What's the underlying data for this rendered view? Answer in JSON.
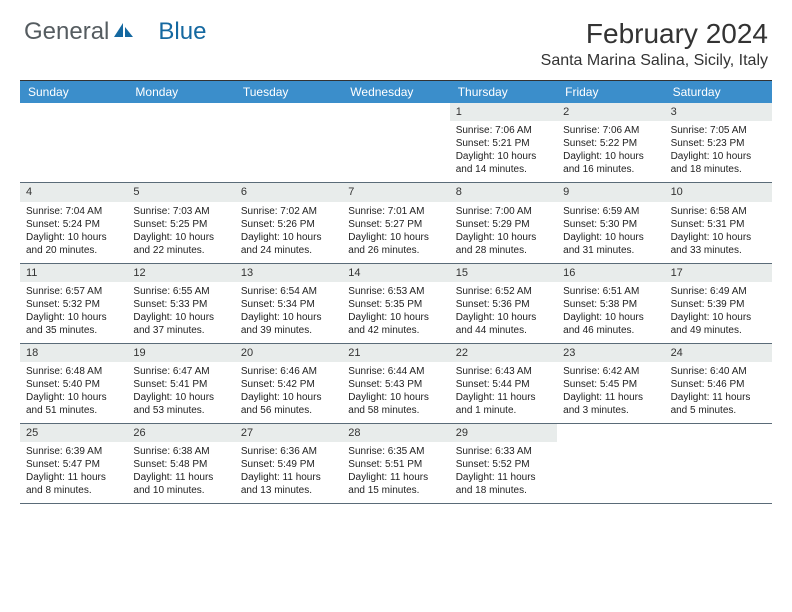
{
  "logo": {
    "text1": "General",
    "text2": "Blue"
  },
  "title": "February 2024",
  "subtitle": "Santa Marina Salina, Sicily, Italy",
  "colors": {
    "header_bar": "#3b8ecb",
    "day_bar": "#e8eceb",
    "logo_gray": "#555c60",
    "logo_blue": "#1468a0",
    "rule": "#5a6b78"
  },
  "weekdays": [
    "Sunday",
    "Monday",
    "Tuesday",
    "Wednesday",
    "Thursday",
    "Friday",
    "Saturday"
  ],
  "weeks": [
    [
      {
        "empty": true
      },
      {
        "empty": true
      },
      {
        "empty": true
      },
      {
        "empty": true
      },
      {
        "num": "1",
        "sunrise": "Sunrise: 7:06 AM",
        "sunset": "Sunset: 5:21 PM",
        "day1": "Daylight: 10 hours",
        "day2": "and 14 minutes."
      },
      {
        "num": "2",
        "sunrise": "Sunrise: 7:06 AM",
        "sunset": "Sunset: 5:22 PM",
        "day1": "Daylight: 10 hours",
        "day2": "and 16 minutes."
      },
      {
        "num": "3",
        "sunrise": "Sunrise: 7:05 AM",
        "sunset": "Sunset: 5:23 PM",
        "day1": "Daylight: 10 hours",
        "day2": "and 18 minutes."
      }
    ],
    [
      {
        "num": "4",
        "sunrise": "Sunrise: 7:04 AM",
        "sunset": "Sunset: 5:24 PM",
        "day1": "Daylight: 10 hours",
        "day2": "and 20 minutes."
      },
      {
        "num": "5",
        "sunrise": "Sunrise: 7:03 AM",
        "sunset": "Sunset: 5:25 PM",
        "day1": "Daylight: 10 hours",
        "day2": "and 22 minutes."
      },
      {
        "num": "6",
        "sunrise": "Sunrise: 7:02 AM",
        "sunset": "Sunset: 5:26 PM",
        "day1": "Daylight: 10 hours",
        "day2": "and 24 minutes."
      },
      {
        "num": "7",
        "sunrise": "Sunrise: 7:01 AM",
        "sunset": "Sunset: 5:27 PM",
        "day1": "Daylight: 10 hours",
        "day2": "and 26 minutes."
      },
      {
        "num": "8",
        "sunrise": "Sunrise: 7:00 AM",
        "sunset": "Sunset: 5:29 PM",
        "day1": "Daylight: 10 hours",
        "day2": "and 28 minutes."
      },
      {
        "num": "9",
        "sunrise": "Sunrise: 6:59 AM",
        "sunset": "Sunset: 5:30 PM",
        "day1": "Daylight: 10 hours",
        "day2": "and 31 minutes."
      },
      {
        "num": "10",
        "sunrise": "Sunrise: 6:58 AM",
        "sunset": "Sunset: 5:31 PM",
        "day1": "Daylight: 10 hours",
        "day2": "and 33 minutes."
      }
    ],
    [
      {
        "num": "11",
        "sunrise": "Sunrise: 6:57 AM",
        "sunset": "Sunset: 5:32 PM",
        "day1": "Daylight: 10 hours",
        "day2": "and 35 minutes."
      },
      {
        "num": "12",
        "sunrise": "Sunrise: 6:55 AM",
        "sunset": "Sunset: 5:33 PM",
        "day1": "Daylight: 10 hours",
        "day2": "and 37 minutes."
      },
      {
        "num": "13",
        "sunrise": "Sunrise: 6:54 AM",
        "sunset": "Sunset: 5:34 PM",
        "day1": "Daylight: 10 hours",
        "day2": "and 39 minutes."
      },
      {
        "num": "14",
        "sunrise": "Sunrise: 6:53 AM",
        "sunset": "Sunset: 5:35 PM",
        "day1": "Daylight: 10 hours",
        "day2": "and 42 minutes."
      },
      {
        "num": "15",
        "sunrise": "Sunrise: 6:52 AM",
        "sunset": "Sunset: 5:36 PM",
        "day1": "Daylight: 10 hours",
        "day2": "and 44 minutes."
      },
      {
        "num": "16",
        "sunrise": "Sunrise: 6:51 AM",
        "sunset": "Sunset: 5:38 PM",
        "day1": "Daylight: 10 hours",
        "day2": "and 46 minutes."
      },
      {
        "num": "17",
        "sunrise": "Sunrise: 6:49 AM",
        "sunset": "Sunset: 5:39 PM",
        "day1": "Daylight: 10 hours",
        "day2": "and 49 minutes."
      }
    ],
    [
      {
        "num": "18",
        "sunrise": "Sunrise: 6:48 AM",
        "sunset": "Sunset: 5:40 PM",
        "day1": "Daylight: 10 hours",
        "day2": "and 51 minutes."
      },
      {
        "num": "19",
        "sunrise": "Sunrise: 6:47 AM",
        "sunset": "Sunset: 5:41 PM",
        "day1": "Daylight: 10 hours",
        "day2": "and 53 minutes."
      },
      {
        "num": "20",
        "sunrise": "Sunrise: 6:46 AM",
        "sunset": "Sunset: 5:42 PM",
        "day1": "Daylight: 10 hours",
        "day2": "and 56 minutes."
      },
      {
        "num": "21",
        "sunrise": "Sunrise: 6:44 AM",
        "sunset": "Sunset: 5:43 PM",
        "day1": "Daylight: 10 hours",
        "day2": "and 58 minutes."
      },
      {
        "num": "22",
        "sunrise": "Sunrise: 6:43 AM",
        "sunset": "Sunset: 5:44 PM",
        "day1": "Daylight: 11 hours",
        "day2": "and 1 minute."
      },
      {
        "num": "23",
        "sunrise": "Sunrise: 6:42 AM",
        "sunset": "Sunset: 5:45 PM",
        "day1": "Daylight: 11 hours",
        "day2": "and 3 minutes."
      },
      {
        "num": "24",
        "sunrise": "Sunrise: 6:40 AM",
        "sunset": "Sunset: 5:46 PM",
        "day1": "Daylight: 11 hours",
        "day2": "and 5 minutes."
      }
    ],
    [
      {
        "num": "25",
        "sunrise": "Sunrise: 6:39 AM",
        "sunset": "Sunset: 5:47 PM",
        "day1": "Daylight: 11 hours",
        "day2": "and 8 minutes."
      },
      {
        "num": "26",
        "sunrise": "Sunrise: 6:38 AM",
        "sunset": "Sunset: 5:48 PM",
        "day1": "Daylight: 11 hours",
        "day2": "and 10 minutes."
      },
      {
        "num": "27",
        "sunrise": "Sunrise: 6:36 AM",
        "sunset": "Sunset: 5:49 PM",
        "day1": "Daylight: 11 hours",
        "day2": "and 13 minutes."
      },
      {
        "num": "28",
        "sunrise": "Sunrise: 6:35 AM",
        "sunset": "Sunset: 5:51 PM",
        "day1": "Daylight: 11 hours",
        "day2": "and 15 minutes."
      },
      {
        "num": "29",
        "sunrise": "Sunrise: 6:33 AM",
        "sunset": "Sunset: 5:52 PM",
        "day1": "Daylight: 11 hours",
        "day2": "and 18 minutes."
      },
      {
        "empty": true
      },
      {
        "empty": true
      }
    ]
  ]
}
